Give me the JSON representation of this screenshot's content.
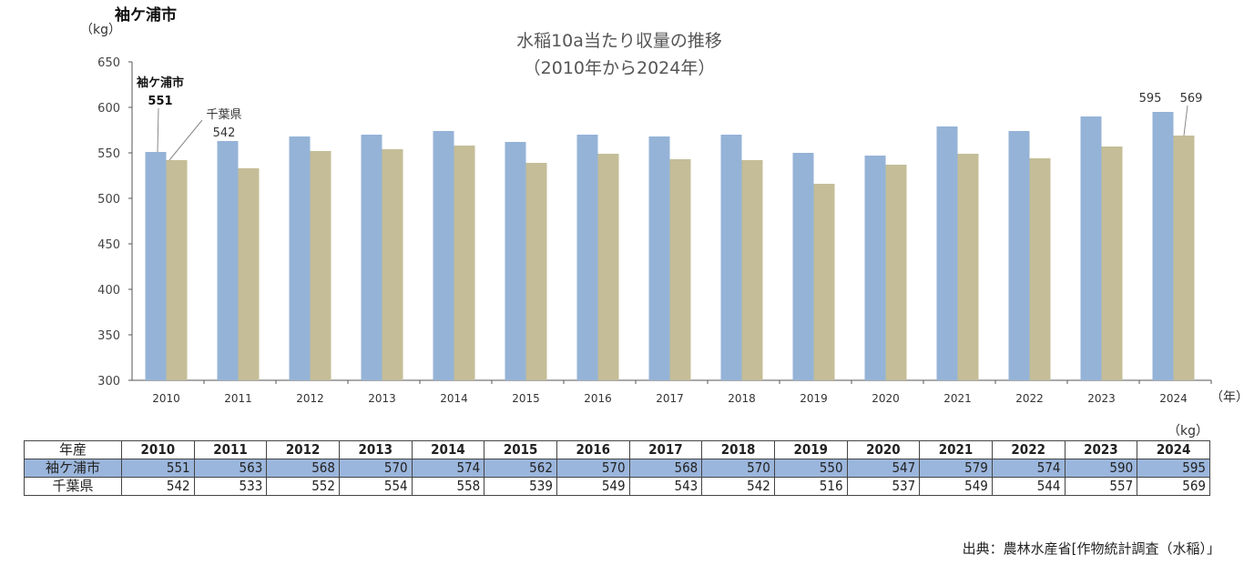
{
  "page_label": "袖ケ浦市",
  "chart_data": {
    "type": "bar",
    "title": "水稲10a当たり収量の推移",
    "subtitle": "（2010年から2024年）",
    "ylabel": "（kg）",
    "xlabel": "（年）",
    "ylim": [
      300,
      650
    ],
    "yticks": [
      300,
      350,
      400,
      450,
      500,
      550,
      600,
      650
    ],
    "categories": [
      "2010",
      "2011",
      "2012",
      "2013",
      "2014",
      "2015",
      "2016",
      "2017",
      "2018",
      "2019",
      "2020",
      "2021",
      "2022",
      "2023",
      "2024"
    ],
    "series": [
      {
        "name": "袖ケ浦市",
        "color": "#95b3d7",
        "values": [
          551,
          563,
          568,
          570,
          574,
          562,
          570,
          568,
          570,
          550,
          547,
          579,
          574,
          590,
          595
        ]
      },
      {
        "name": "千葉県",
        "color": "#c4bd97",
        "values": [
          542,
          533,
          552,
          554,
          558,
          539,
          549,
          543,
          542,
          516,
          537,
          549,
          544,
          557,
          569
        ]
      }
    ],
    "annotations": [
      {
        "series": 0,
        "index": 0,
        "text_name": "袖ケ浦市",
        "text_value": "551"
      },
      {
        "series": 1,
        "index": 0,
        "text_name": "千葉県",
        "text_value": "542"
      },
      {
        "series": 0,
        "index": 14,
        "text_value": "595"
      },
      {
        "series": 1,
        "index": 14,
        "text_value": "569"
      }
    ],
    "grid": false
  },
  "table": {
    "unit": "（kg）",
    "header_label": "年産",
    "years": [
      "2010",
      "2011",
      "2012",
      "2013",
      "2014",
      "2015",
      "2016",
      "2017",
      "2018",
      "2019",
      "2020",
      "2021",
      "2022",
      "2023",
      "2024"
    ],
    "rows": [
      {
        "label": "袖ケ浦市",
        "values": [
          "551",
          "563",
          "568",
          "570",
          "574",
          "562",
          "570",
          "568",
          "570",
          "550",
          "547",
          "579",
          "574",
          "590",
          "595"
        ]
      },
      {
        "label": "千葉県",
        "values": [
          "542",
          "533",
          "552",
          "554",
          "558",
          "539",
          "549",
          "543",
          "542",
          "516",
          "537",
          "549",
          "544",
          "557",
          "569"
        ]
      }
    ]
  },
  "source": "出典：農林水産省[作物統計調査（水稲）」"
}
